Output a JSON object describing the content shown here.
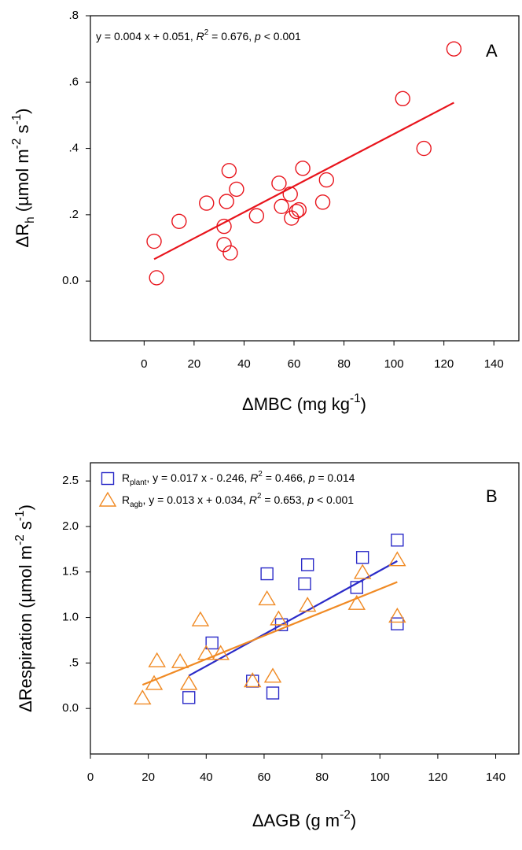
{
  "chart_data": [
    {
      "type": "scatter",
      "panel_label": "A",
      "annotation": [
        "y = 0.004 x + 0.051, ",
        "R",
        "2",
        " = 0.676, ",
        "p",
        " < 0.001"
      ],
      "x_label": [
        "ΔMBC (mg kg",
        "-1",
        ")"
      ],
      "y_label": [
        "ΔR",
        "h",
        " (µmol m",
        "-2",
        " s",
        "-1",
        ")"
      ],
      "xlim": [
        -21.5,
        150
      ],
      "ylim": [
        -0.18,
        0.8
      ],
      "xticks": [
        0,
        20,
        40,
        60,
        80,
        100,
        120,
        140
      ],
      "yticks": [
        {
          "value": 0,
          "label": "0.0"
        },
        {
          "value": 0.2,
          "label": ".2"
        },
        {
          "value": 0.4,
          "label": ".4"
        },
        {
          "value": 0.6,
          "label": ".6"
        },
        {
          "value": 0.8,
          "label": ".8"
        }
      ],
      "series": [
        {
          "color": "#e8141c",
          "marker": "circle",
          "x": [
            4,
            5,
            14,
            25,
            32,
            32,
            33,
            34,
            34.5,
            37,
            45,
            54,
            55,
            58.5,
            59,
            61,
            62,
            63.5,
            71.5,
            73,
            103.5,
            112,
            124
          ],
          "y": [
            0.12,
            0.01,
            0.18,
            0.235,
            0.165,
            0.11,
            0.24,
            0.333,
            0.085,
            0.277,
            0.197,
            0.295,
            0.225,
            0.262,
            0.19,
            0.21,
            0.215,
            0.34,
            0.238,
            0.305,
            0.55,
            0.4,
            0.7
          ],
          "fit": {
            "x": [
              4,
              124
            ],
            "y": [
              0.066,
              0.538
            ]
          }
        }
      ]
    },
    {
      "type": "scatter",
      "panel_label": "B",
      "x_label": [
        "ΔAGB (g m",
        "-2",
        ")"
      ],
      "y_label": [
        "ΔRespiration (µmol m",
        "-2",
        " s",
        "-1",
        ")"
      ],
      "xlim": [
        0,
        148
      ],
      "ylim": [
        -0.5,
        2.7
      ],
      "xticks": [
        0,
        20,
        40,
        60,
        80,
        100,
        120,
        140
      ],
      "yticks": [
        {
          "value": 0,
          "label": "0.0"
        },
        {
          "value": 0.5,
          "label": ".5"
        },
        {
          "value": 1,
          "label": "1.0"
        },
        {
          "value": 1.5,
          "label": "1.5"
        },
        {
          "value": 2,
          "label": "2.0"
        },
        {
          "value": 2.5,
          "label": "2.5"
        }
      ],
      "series": [
        {
          "name": [
            "R",
            "plant",
            ", y = 0.017 x - 0.246, ",
            "R",
            "2",
            " = 0.466, ",
            "p",
            " = 0.014"
          ],
          "color": "#2b2bc8",
          "marker": "square",
          "x": [
            34,
            42,
            56,
            61,
            63,
            66,
            74,
            75,
            92,
            94,
            106,
            106
          ],
          "y": [
            0.12,
            0.72,
            0.3,
            1.48,
            0.17,
            0.92,
            1.37,
            1.58,
            1.33,
            1.66,
            1.85,
            0.93
          ],
          "fit": {
            "x": [
              34,
              106
            ],
            "y": [
              0.36,
              1.62
            ]
          }
        },
        {
          "name": [
            "R",
            "agb",
            ", y = 0.013 x + 0.034, ",
            "R",
            "2",
            " = 0.653, ",
            "p",
            " < 0.001"
          ],
          "color": "#f08a24",
          "marker": "triangle",
          "x": [
            18,
            22,
            23,
            31,
            34,
            38,
            40,
            45,
            56,
            61,
            63,
            65,
            75,
            92,
            94,
            106,
            106
          ],
          "y": [
            0.11,
            0.27,
            0.52,
            0.51,
            0.27,
            0.97,
            0.6,
            0.6,
            0.3,
            1.2,
            0.35,
            0.98,
            1.13,
            1.15,
            1.49,
            1.63,
            1.01
          ],
          "fit": {
            "x": [
              18,
              106
            ],
            "y": [
              0.26,
              1.39
            ]
          }
        }
      ]
    }
  ]
}
